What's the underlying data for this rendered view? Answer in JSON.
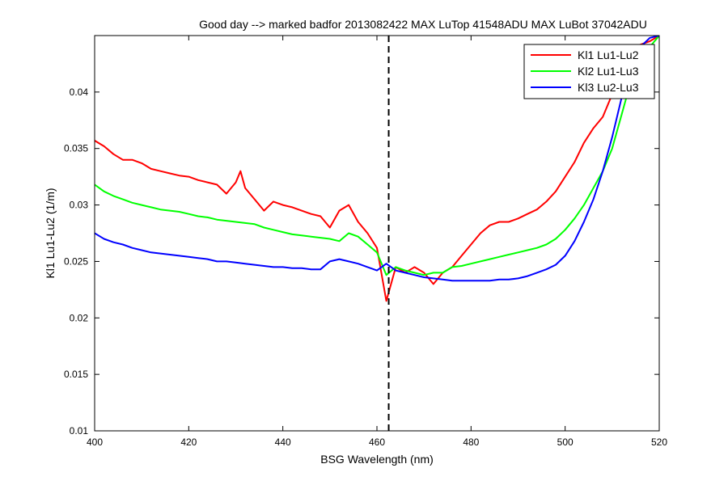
{
  "chart_data": {
    "type": "line",
    "title": "Good day --> marked badfor 2013082422  MAX LuTop 41548ADU    MAX LuBot 37042ADU",
    "xlabel": "BSG Wavelength (nm)",
    "ylabel": "Kl1 Lu1-Lu2 (1/m)",
    "xlim": [
      400,
      520
    ],
    "ylim": [
      0.01,
      0.045
    ],
    "xticks": [
      400,
      420,
      440,
      460,
      480,
      500,
      520
    ],
    "xtick_labels": [
      "400",
      "420",
      "440",
      "460",
      "480",
      "500",
      "520"
    ],
    "yticks": [
      0.01,
      0.015,
      0.02,
      0.025,
      0.03,
      0.035,
      0.04
    ],
    "ytick_labels": [
      "0.01",
      "0.015",
      "0.02",
      "0.025",
      "0.03",
      "0.035",
      "0.04"
    ],
    "grid": false,
    "legend": "top-right",
    "vline": {
      "x": 462.5,
      "style": "dashed",
      "color": "#000000"
    },
    "series": [
      {
        "name": "Kl1 Lu1-Lu2",
        "color": "#ff0000",
        "x": [
          400,
          402,
          404,
          406,
          408,
          410,
          412,
          414,
          416,
          418,
          420,
          422,
          424,
          426,
          428,
          430,
          431,
          432,
          434,
          436,
          438,
          440,
          442,
          444,
          446,
          448,
          450,
          452,
          454,
          456,
          458,
          460,
          462,
          464,
          466,
          468,
          470,
          472,
          474,
          476,
          478,
          480,
          482,
          484,
          486,
          488,
          490,
          492,
          494,
          496,
          498,
          500,
          502,
          504,
          506,
          508,
          510,
          512,
          514,
          516,
          518,
          520
        ],
        "y": [
          0.0357,
          0.0352,
          0.0345,
          0.034,
          0.034,
          0.0337,
          0.0332,
          0.033,
          0.0328,
          0.0326,
          0.0325,
          0.0322,
          0.032,
          0.0318,
          0.031,
          0.032,
          0.033,
          0.0315,
          0.0305,
          0.0295,
          0.0303,
          0.03,
          0.0298,
          0.0295,
          0.0292,
          0.029,
          0.028,
          0.0295,
          0.03,
          0.0285,
          0.0275,
          0.0262,
          0.0215,
          0.0245,
          0.024,
          0.0245,
          0.024,
          0.023,
          0.024,
          0.0245,
          0.0255,
          0.0265,
          0.0275,
          0.0282,
          0.0285,
          0.0285,
          0.0288,
          0.0292,
          0.0296,
          0.0303,
          0.0312,
          0.0325,
          0.0338,
          0.0355,
          0.0368,
          0.0378,
          0.0398,
          0.042,
          0.0432,
          0.0442,
          0.0445,
          0.045
        ]
      },
      {
        "name": "Kl2 Lu1-Lu3",
        "color": "#00ff00",
        "x": [
          400,
          402,
          404,
          406,
          408,
          410,
          412,
          414,
          416,
          418,
          420,
          422,
          424,
          426,
          428,
          430,
          432,
          434,
          436,
          438,
          440,
          442,
          444,
          446,
          448,
          450,
          452,
          454,
          456,
          458,
          460,
          462,
          464,
          466,
          468,
          470,
          472,
          474,
          476,
          478,
          480,
          482,
          484,
          486,
          488,
          490,
          492,
          494,
          496,
          498,
          500,
          502,
          504,
          506,
          508,
          510,
          512,
          514,
          516,
          518,
          520
        ],
        "y": [
          0.0318,
          0.0312,
          0.0308,
          0.0305,
          0.0302,
          0.03,
          0.0298,
          0.0296,
          0.0295,
          0.0294,
          0.0292,
          0.029,
          0.0289,
          0.0287,
          0.0286,
          0.0285,
          0.0284,
          0.0283,
          0.028,
          0.0278,
          0.0276,
          0.0274,
          0.0273,
          0.0272,
          0.0271,
          0.027,
          0.0268,
          0.0275,
          0.0272,
          0.0265,
          0.0258,
          0.0238,
          0.0245,
          0.0242,
          0.024,
          0.0238,
          0.024,
          0.024,
          0.0245,
          0.0246,
          0.0248,
          0.025,
          0.0252,
          0.0254,
          0.0256,
          0.0258,
          0.026,
          0.0262,
          0.0265,
          0.027,
          0.0278,
          0.0288,
          0.03,
          0.0315,
          0.033,
          0.035,
          0.038,
          0.041,
          0.043,
          0.044,
          0.045
        ]
      },
      {
        "name": "Kl3 Lu2-Lu3",
        "color": "#0000ff",
        "x": [
          400,
          402,
          404,
          406,
          408,
          410,
          412,
          414,
          416,
          418,
          420,
          422,
          424,
          426,
          428,
          430,
          432,
          434,
          436,
          438,
          440,
          442,
          444,
          446,
          448,
          450,
          452,
          454,
          456,
          458,
          460,
          462,
          464,
          466,
          468,
          470,
          472,
          474,
          476,
          478,
          480,
          482,
          484,
          486,
          488,
          490,
          492,
          494,
          496,
          498,
          500,
          502,
          504,
          506,
          508,
          510,
          512,
          514,
          516,
          518,
          520
        ],
        "y": [
          0.0275,
          0.027,
          0.0267,
          0.0265,
          0.0262,
          0.026,
          0.0258,
          0.0257,
          0.0256,
          0.0255,
          0.0254,
          0.0253,
          0.0252,
          0.025,
          0.025,
          0.0249,
          0.0248,
          0.0247,
          0.0246,
          0.0245,
          0.0245,
          0.0244,
          0.0244,
          0.0243,
          0.0243,
          0.025,
          0.0252,
          0.025,
          0.0248,
          0.0245,
          0.0242,
          0.0248,
          0.0242,
          0.024,
          0.0238,
          0.0236,
          0.0235,
          0.0234,
          0.0233,
          0.0233,
          0.0233,
          0.0233,
          0.0233,
          0.0234,
          0.0234,
          0.0235,
          0.0237,
          0.024,
          0.0243,
          0.0247,
          0.0255,
          0.0268,
          0.0285,
          0.0305,
          0.033,
          0.036,
          0.0395,
          0.0425,
          0.044,
          0.0448,
          0.045
        ]
      }
    ]
  }
}
